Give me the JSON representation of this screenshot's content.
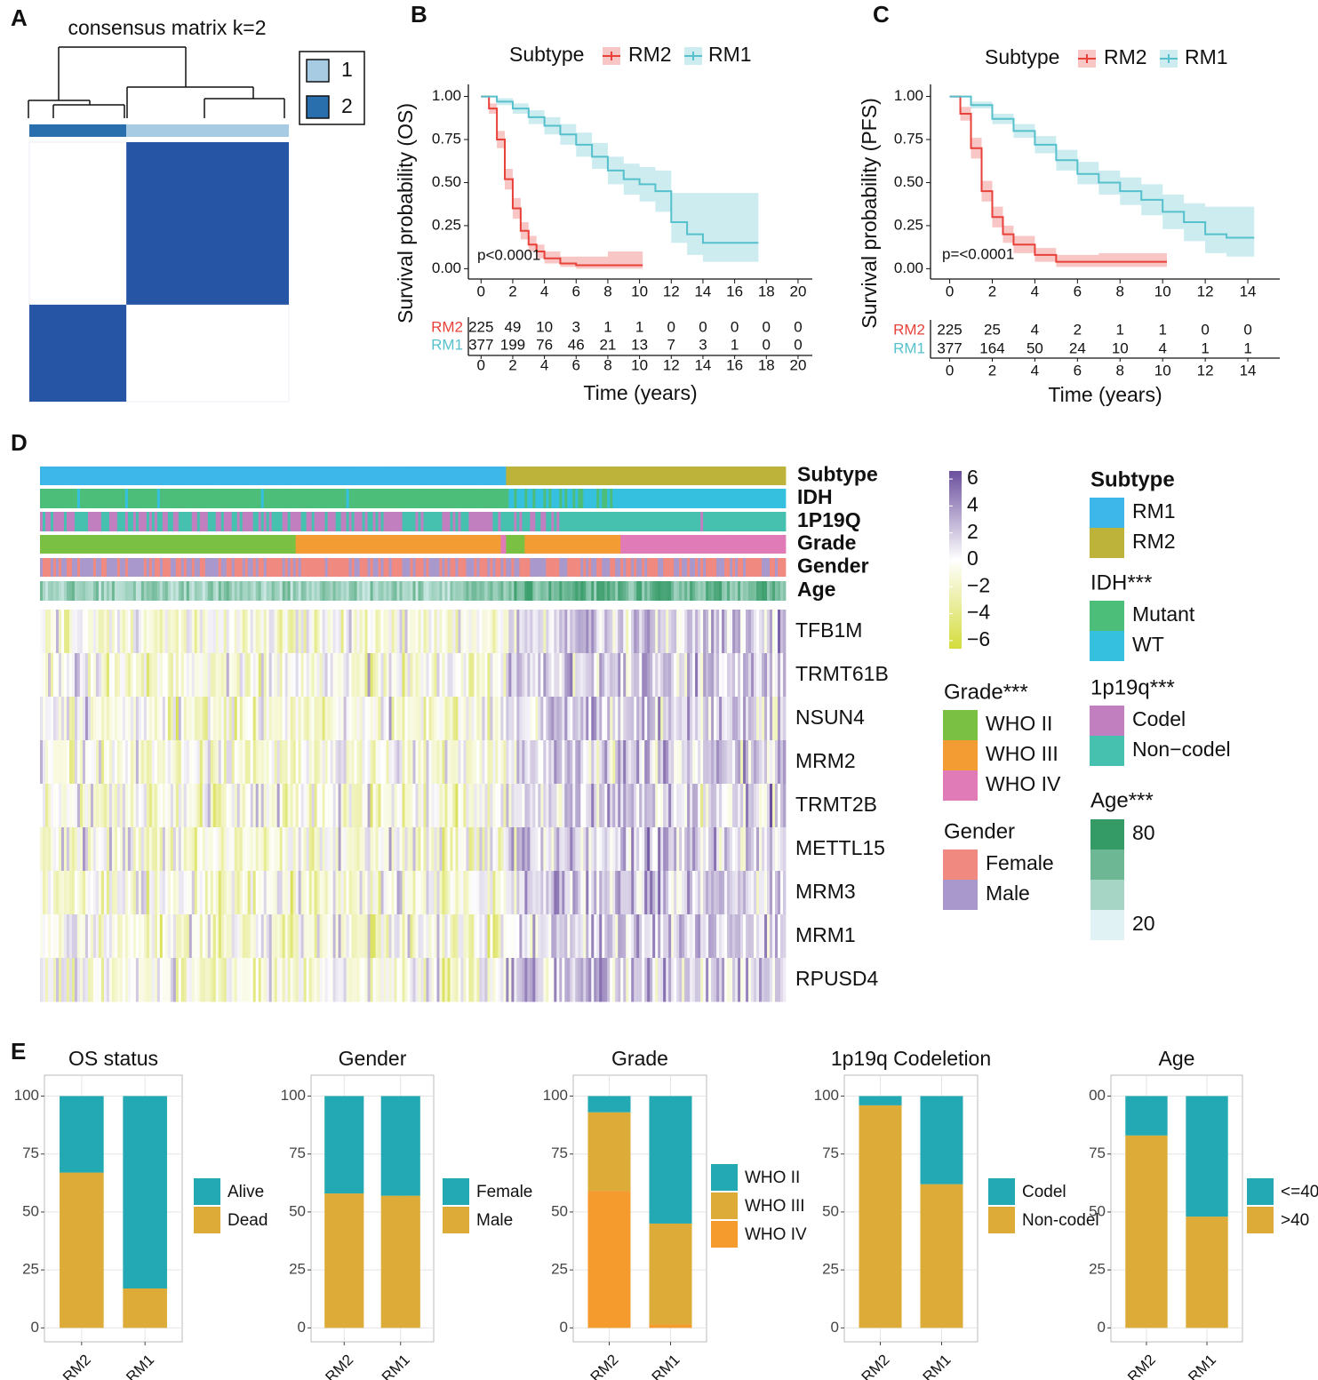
{
  "panel_labels": [
    "A",
    "B",
    "C",
    "D",
    "E"
  ],
  "chart_data": [
    {
      "type": "consensus",
      "title": "consensus matrix k=2",
      "matrix_color": "#2655a6",
      "legend": [
        {
          "name": "1",
          "color": "#a6cbe3"
        },
        {
          "name": "2",
          "color": "#2a6fad"
        }
      ]
    },
    {
      "type": "km",
      "ylabel": "Survival probability (OS)",
      "xlabel": "Time (years)",
      "legend_title": "Subtype",
      "annotation": "p<0.0001",
      "xlim": [
        -0.8,
        20.9
      ],
      "xticks": [
        0,
        2,
        4,
        6,
        8,
        10,
        12,
        14,
        16,
        18,
        20
      ],
      "ylim": [
        -0.06,
        1.07
      ],
      "yticks": [
        {
          "value": 0,
          "label": "0.00"
        },
        {
          "value": 0.25,
          "label": "0.25"
        },
        {
          "value": 0.5,
          "label": "0.50"
        },
        {
          "value": 0.75,
          "label": "0.75"
        },
        {
          "value": 1,
          "label": "1.00"
        }
      ],
      "series": [
        {
          "name": "RM2",
          "color": "#e8413a",
          "x": [
            0,
            0.5,
            1,
            1.5,
            2,
            2.5,
            3,
            3.5,
            4,
            5,
            6,
            8,
            10.2
          ],
          "values": [
            1,
            0.93,
            0.75,
            0.52,
            0.35,
            0.22,
            0.14,
            0.1,
            0.06,
            0.03,
            0.02,
            0.02,
            0.02
          ],
          "lower": [
            1,
            0.9,
            0.7,
            0.46,
            0.29,
            0.17,
            0.1,
            0.06,
            0.03,
            0.01,
            0,
            0,
            0
          ],
          "upper": [
            1,
            0.96,
            0.8,
            0.58,
            0.41,
            0.27,
            0.19,
            0.14,
            0.1,
            0.07,
            0.07,
            0.1,
            0.12
          ],
          "at_risk": [
            225,
            49,
            10,
            3,
            1,
            1,
            0,
            0,
            0,
            0,
            0
          ]
        },
        {
          "name": "RM1",
          "color": "#56c0cc",
          "x": [
            0,
            1,
            2,
            3,
            4,
            5,
            6,
            7,
            8,
            9,
            10,
            11,
            12,
            13,
            14,
            17.5
          ],
          "values": [
            1,
            0.97,
            0.93,
            0.88,
            0.83,
            0.78,
            0.72,
            0.65,
            0.57,
            0.52,
            0.49,
            0.45,
            0.27,
            0.2,
            0.15,
            0.15
          ],
          "lower": [
            1,
            0.95,
            0.9,
            0.84,
            0.78,
            0.72,
            0.65,
            0.58,
            0.49,
            0.43,
            0.39,
            0.33,
            0.15,
            0.08,
            0.04,
            0.04
          ],
          "upper": [
            1,
            0.99,
            0.96,
            0.92,
            0.88,
            0.84,
            0.79,
            0.73,
            0.65,
            0.61,
            0.59,
            0.57,
            0.44,
            0.44,
            0.44,
            0.44
          ],
          "at_risk": [
            377,
            199,
            76,
            46,
            21,
            13,
            7,
            3,
            1,
            0,
            0
          ]
        }
      ]
    },
    {
      "type": "km",
      "ylabel": "Survival probability (PFS)",
      "xlabel": "Time (years)",
      "legend_title": "Subtype",
      "annotation": "p=<0.0001",
      "xlim": [
        -0.9,
        15.5
      ],
      "xticks": [
        0,
        2,
        4,
        6,
        8,
        10,
        12,
        14
      ],
      "ylim": [
        -0.06,
        1.07
      ],
      "yticks": [
        {
          "value": 0,
          "label": "0.00"
        },
        {
          "value": 0.25,
          "label": "0.25"
        },
        {
          "value": 0.5,
          "label": "0.50"
        },
        {
          "value": 0.75,
          "label": "0.75"
        },
        {
          "value": 1,
          "label": "1.00"
        }
      ],
      "series": [
        {
          "name": "RM2",
          "color": "#e8413a",
          "x": [
            0,
            0.5,
            1,
            1.5,
            2,
            2.5,
            3,
            4,
            5,
            7,
            10.2
          ],
          "values": [
            1,
            0.9,
            0.7,
            0.45,
            0.3,
            0.2,
            0.14,
            0.08,
            0.04,
            0.04,
            0.04
          ],
          "lower": [
            1,
            0.86,
            0.64,
            0.39,
            0.24,
            0.15,
            0.09,
            0.04,
            0.01,
            0.01,
            0.01
          ],
          "upper": [
            1,
            0.94,
            0.76,
            0.51,
            0.36,
            0.25,
            0.19,
            0.12,
            0.08,
            0.09,
            0.1
          ],
          "at_risk": [
            225,
            25,
            4,
            2,
            1,
            1,
            0,
            0
          ]
        },
        {
          "name": "RM1",
          "color": "#56c0cc",
          "x": [
            0,
            1,
            2,
            3,
            4,
            5,
            6,
            7,
            8,
            9,
            10,
            11,
            12,
            13,
            14.3
          ],
          "values": [
            1,
            0.95,
            0.87,
            0.8,
            0.72,
            0.63,
            0.55,
            0.5,
            0.45,
            0.4,
            0.33,
            0.27,
            0.2,
            0.18,
            0.18
          ],
          "lower": [
            1,
            0.93,
            0.84,
            0.76,
            0.67,
            0.57,
            0.49,
            0.43,
            0.37,
            0.31,
            0.23,
            0.16,
            0.09,
            0.07,
            0.07
          ],
          "upper": [
            1,
            0.97,
            0.9,
            0.84,
            0.77,
            0.69,
            0.62,
            0.57,
            0.53,
            0.49,
            0.43,
            0.38,
            0.36,
            0.36,
            0.36
          ],
          "at_risk": [
            377,
            164,
            50,
            24,
            10,
            4,
            1,
            1
          ]
        }
      ]
    },
    {
      "type": "annotated_heatmap",
      "tracks": [
        "Subtype",
        "IDH",
        "1P19Q",
        "Grade",
        "Gender",
        "Age"
      ],
      "genes": [
        "TFB1M",
        "TRMT61B",
        "NSUN4",
        "MRM2",
        "TRMT2B",
        "METTL15",
        "MRM3",
        "MRM1",
        "RPUSD4"
      ],
      "colorbar": {
        "ylim": [
          -6.6,
          6.6
        ],
        "ticks": [
          6,
          4,
          2,
          0,
          {
            "value": -2,
            "label": "−2"
          },
          {
            "value": -4,
            "label": "−4"
          },
          {
            "value": -6,
            "label": "−6"
          }
        ],
        "colors": [
          "#d4dc3c",
          "#ffffff",
          "#6b4f9e"
        ]
      },
      "legends": [
        {
          "title": "Subtype",
          "items": [
            {
              "name": "RM1",
              "color": "#3db7e9"
            },
            {
              "name": "RM2",
              "color": "#bdb33a"
            }
          ]
        },
        {
          "title": "IDH***",
          "items": [
            {
              "name": "Mutant",
              "color": "#4dbd7a"
            },
            {
              "name": "WT",
              "color": "#36c0e0"
            }
          ]
        },
        {
          "title": "1p19q***",
          "items": [
            {
              "name": "Codel",
              "color": "#c27fc0"
            },
            {
              "name": "Non−codel",
              "color": "#46c1b0"
            }
          ]
        },
        {
          "title": "Grade***",
          "items": [
            {
              "name": "WHO II",
              "color": "#7ac143"
            },
            {
              "name": "WHO III",
              "color": "#f39c33"
            },
            {
              "name": "WHO IV",
              "color": "#e07bb8"
            }
          ]
        },
        {
          "title": "Gender",
          "items": [
            {
              "name": "Female",
              "color": "#f08a80"
            },
            {
              "name": "Male",
              "color": "#a898cc"
            }
          ]
        },
        {
          "title": "Age***",
          "ticks": [
            80,
            20
          ],
          "colors": [
            "#349a66",
            "#e0f2f4"
          ]
        }
      ]
    },
    {
      "type": "stacked_bar",
      "title": "OS status",
      "categories": [
        "RM2",
        "RM1"
      ],
      "ylim": [
        -6,
        109
      ],
      "yticks": [
        0,
        25,
        50,
        75,
        100
      ],
      "grid": true,
      "series": [
        {
          "name": "Dead",
          "color": "#dcab38",
          "values": [
            67,
            17
          ]
        },
        {
          "name": "Alive",
          "color": "#22a9b3",
          "values": [
            33,
            83
          ]
        }
      ]
    },
    {
      "type": "stacked_bar",
      "title": "Gender",
      "categories": [
        "RM2",
        "RM1"
      ],
      "ylim": [
        -6,
        109
      ],
      "yticks": [
        0,
        25,
        50,
        75,
        100
      ],
      "grid": true,
      "series": [
        {
          "name": "Male",
          "color": "#dcab38",
          "values": [
            58,
            57
          ]
        },
        {
          "name": "Female",
          "color": "#22a9b3",
          "values": [
            42,
            43
          ]
        }
      ]
    },
    {
      "type": "stacked_bar",
      "title": "Grade",
      "categories": [
        "RM2",
        "RM1"
      ],
      "ylim": [
        -6,
        109
      ],
      "yticks": [
        0,
        25,
        50,
        75,
        100
      ],
      "grid": true,
      "series": [
        {
          "name": "WHO IV",
          "color": "#f59a2c",
          "values": [
            59,
            1.5
          ]
        },
        {
          "name": "WHO III",
          "color": "#dcab38",
          "values": [
            34,
            43.5
          ]
        },
        {
          "name": "WHO II",
          "color": "#22a9b3",
          "values": [
            7,
            55
          ]
        }
      ]
    },
    {
      "type": "stacked_bar",
      "title": "1p19q Codeletion",
      "categories": [
        "RM2",
        "RM1"
      ],
      "ylim": [
        -6,
        109
      ],
      "yticks": [
        0,
        25,
        50,
        75,
        100
      ],
      "grid": true,
      "series": [
        {
          "name": "Non-codel",
          "color": "#dcab38",
          "values": [
            96,
            62
          ]
        },
        {
          "name": "Codel",
          "color": "#22a9b3",
          "values": [
            4,
            38
          ]
        }
      ]
    },
    {
      "type": "stacked_bar",
      "title": "Age",
      "categories": [
        "RM2",
        "RM1"
      ],
      "ylim": [
        -6,
        109
      ],
      "yticks": [
        0,
        25,
        50,
        75,
        {
          "value": 100,
          "label": "00"
        }
      ],
      "grid": true,
      "series": [
        {
          "name": ">40",
          "color": "#dcab38",
          "values": [
            83,
            48
          ]
        },
        {
          "name": "<=40",
          "color": "#22a9b3",
          "values": [
            17,
            52
          ]
        }
      ]
    }
  ]
}
